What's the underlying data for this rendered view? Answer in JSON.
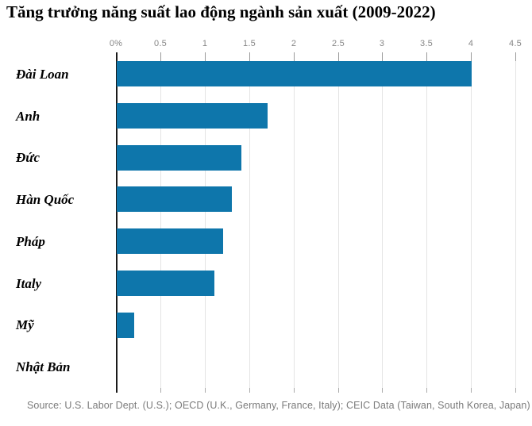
{
  "title": "Tăng trưởng năng suất lao động ngành sản xuất (2009-2022)",
  "source": "Source: U.S. Labor Dept. (U.S.); OECD (U.K., Germany, France, Italy); CEIC Data (Taiwan, South Korea, Japan)",
  "colors": {
    "bar": "#0e76ab",
    "axis": "#1a1a1a",
    "gridline": "#e4e4e4",
    "tick": "#9a9a9a",
    "tick_label": "#878787",
    "source_text": "#7b7b7b",
    "title_text": "#000000"
  },
  "chart_data": {
    "type": "bar",
    "orientation": "horizontal",
    "title": "Tăng trưởng năng suất lao động ngành sản xuất (2009-2022)",
    "categories": [
      "Đài Loan",
      "Anh",
      "Đức",
      "Hàn Quốc",
      "Pháp",
      "Italy",
      "Mỹ",
      "Nhật Bản"
    ],
    "values": [
      4.0,
      1.7,
      1.4,
      1.3,
      1.2,
      1.1,
      0.2,
      0
    ],
    "unit": "percent",
    "xlim": [
      0,
      4.5
    ],
    "x_ticks": [
      {
        "label": "0%",
        "value": 0
      },
      {
        "label": "0.5",
        "value": 0.5
      },
      {
        "label": "1",
        "value": 1
      },
      {
        "label": "1.5",
        "value": 1.5
      },
      {
        "label": "2",
        "value": 2
      },
      {
        "label": "2.5",
        "value": 2.5
      },
      {
        "label": "3",
        "value": 3
      },
      {
        "label": "3.5",
        "value": 3.5
      },
      {
        "label": "4",
        "value": 4
      },
      {
        "label": "4.5",
        "value": 4.5
      }
    ],
    "grid": true,
    "legend": false,
    "xlabel": "",
    "ylabel": ""
  }
}
